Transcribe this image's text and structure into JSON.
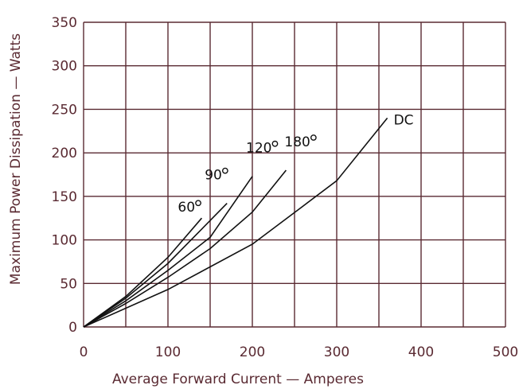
{
  "chart_data": {
    "type": "line",
    "title": "",
    "xlabel": "Average Forward Current — Amperes",
    "ylabel": "Maximum Power Dissipation — Watts",
    "xlim": [
      0,
      500
    ],
    "ylim": [
      0,
      350
    ],
    "xticks": [
      0,
      50,
      100,
      150,
      200,
      250,
      300,
      350,
      400,
      450,
      500
    ],
    "yticks": [
      0,
      50,
      100,
      150,
      200,
      250,
      300,
      350
    ],
    "xtick_labels": [
      "0",
      "100",
      "200",
      "300",
      "400",
      "500"
    ],
    "ytick_labels": [
      "0",
      "50",
      "100",
      "150",
      "200",
      "250",
      "300",
      "350"
    ],
    "grid": true,
    "series": [
      {
        "name": "60°",
        "label_text": "60",
        "x": [
          0,
          50,
          100,
          140
        ],
        "y": [
          0,
          35,
          80,
          125
        ]
      },
      {
        "name": "90°",
        "label_text": "90",
        "x": [
          0,
          50,
          100,
          170
        ],
        "y": [
          0,
          33,
          73,
          142
        ]
      },
      {
        "name": "120°",
        "label_text": "120",
        "x": [
          0,
          50,
          100,
          150,
          200
        ],
        "y": [
          0,
          30,
          65,
          103,
          173
        ]
      },
      {
        "name": "180°",
        "label_text": "180",
        "x": [
          0,
          50,
          100,
          150,
          200,
          240
        ],
        "y": [
          0,
          27,
          57,
          90,
          132,
          180
        ]
      },
      {
        "name": "DC",
        "label_text": "DC",
        "x": [
          0,
          100,
          200,
          300,
          360
        ],
        "y": [
          0,
          43,
          95,
          168,
          240
        ]
      }
    ],
    "colors": {
      "grid": "#5a2a32",
      "curve": "#111111",
      "text": "#5a2a32"
    }
  }
}
